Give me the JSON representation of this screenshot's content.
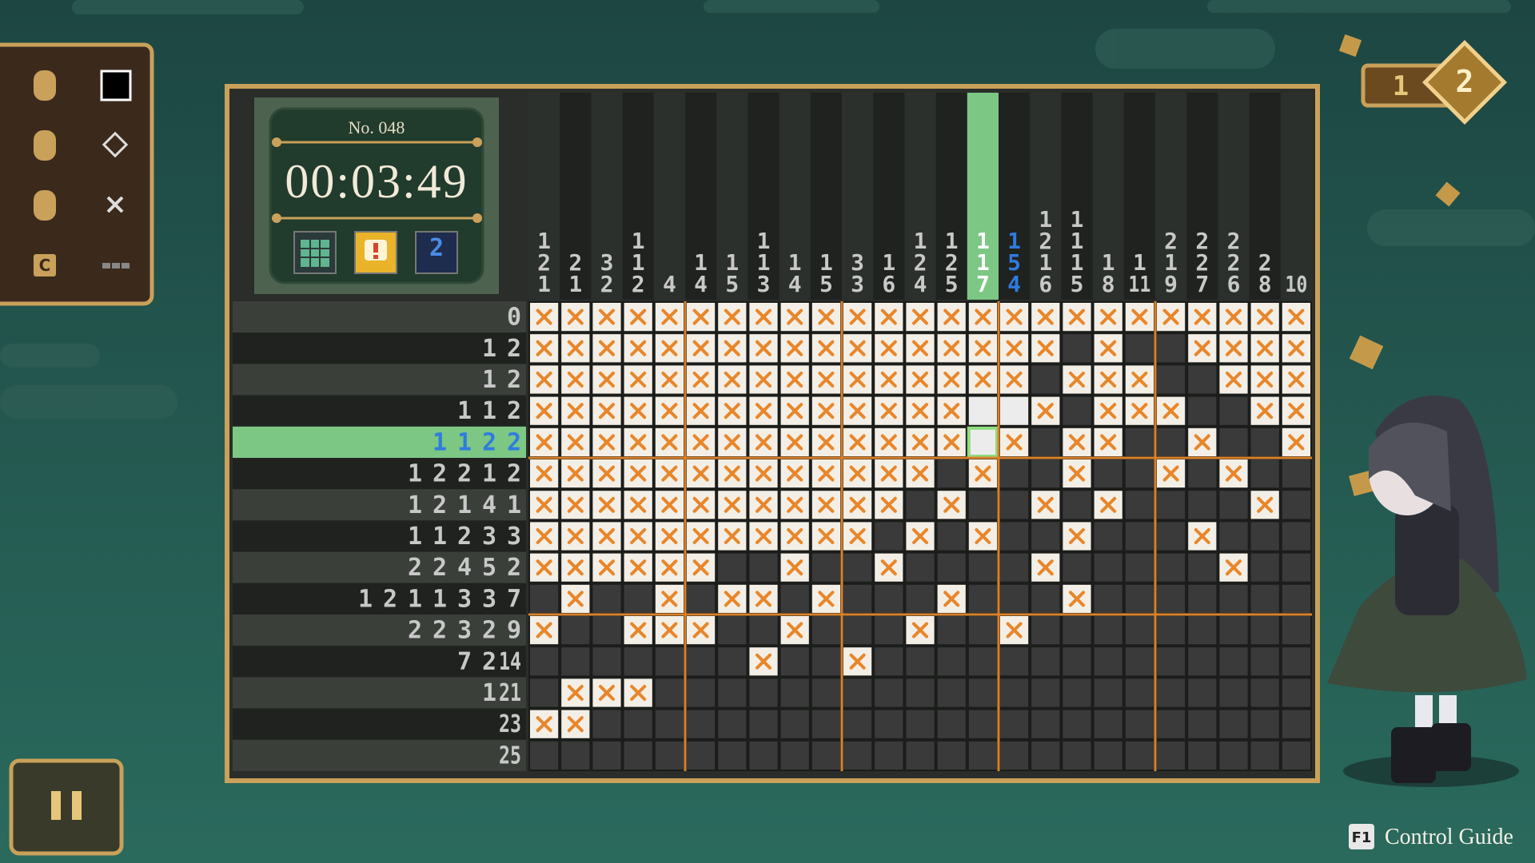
{
  "toolbar": {
    "key_label": "C"
  },
  "info": {
    "puzzle_number": "No. 048",
    "timer": "00:03:49",
    "hint_badge": "2"
  },
  "stage": {
    "progress": "1",
    "level": "2"
  },
  "puzzle": {
    "highlight_row": 4,
    "highlight_column": 14,
    "column_clues": [
      [
        1,
        2,
        1
      ],
      [
        2,
        1
      ],
      [
        3,
        2
      ],
      [
        1,
        1,
        2
      ],
      [
        4
      ],
      [
        1,
        4
      ],
      [
        1,
        5
      ],
      [
        1,
        1,
        3
      ],
      [
        1,
        4
      ],
      [
        1,
        5
      ],
      [
        3,
        3
      ],
      [
        1,
        6
      ],
      [
        1,
        2,
        4
      ],
      [
        1,
        2,
        5
      ],
      [
        1,
        1,
        7
      ],
      [
        1,
        5,
        4
      ],
      [
        1,
        2,
        1,
        6
      ],
      [
        1,
        1,
        1,
        5
      ],
      [
        1,
        8
      ],
      [
        1,
        11
      ],
      [
        2,
        1,
        9
      ],
      [
        2,
        2,
        7
      ],
      [
        2,
        2,
        6
      ],
      [
        2,
        8
      ],
      [
        10
      ]
    ],
    "row_clues": [
      [
        0
      ],
      [
        1,
        2
      ],
      [
        1,
        2
      ],
      [
        1,
        1,
        2
      ],
      [
        1,
        1,
        2,
        2
      ],
      [
        1,
        2,
        2,
        1,
        2
      ],
      [
        1,
        2,
        1,
        4,
        1
      ],
      [
        1,
        1,
        2,
        3,
        3
      ],
      [
        2,
        2,
        4,
        5,
        2
      ],
      [
        1,
        2,
        1,
        1,
        3,
        3,
        7
      ],
      [
        2,
        2,
        3,
        2,
        9
      ],
      [
        7,
        2,
        14
      ],
      [
        1,
        21
      ],
      [
        23
      ],
      [
        25
      ]
    ],
    "cells": [
      "xxxxxxxxxxxxxxxxxxxxxxxxx",
      "xxxxxxxxxxxxxxxxx#x##xxxx",
      "xxxxxxxxxxxxxxxx#xxx##xxx",
      "xxxxxxxxxxxxxx..x#xxx##xx",
      "xxxxxxxxxxxxxx.x#xx##x##x",
      "xxxxxxxxxxxxx#x##x##x#x##",
      "xxxxxxxxxxxx#x##x#x####x#",
      "xxxxxxxxxxx#x#x##x###x###",
      "xxxxxx##x##x####x#####x##",
      "#x##x#xx#x###x###x#######",
      "x##xxx##x###x##x#########",
      "#######x##x##############",
      "#xxx#####################",
      "xx#######################",
      "#########################"
    ]
  },
  "footer": {
    "key": "F1",
    "label": "Control Guide"
  }
}
